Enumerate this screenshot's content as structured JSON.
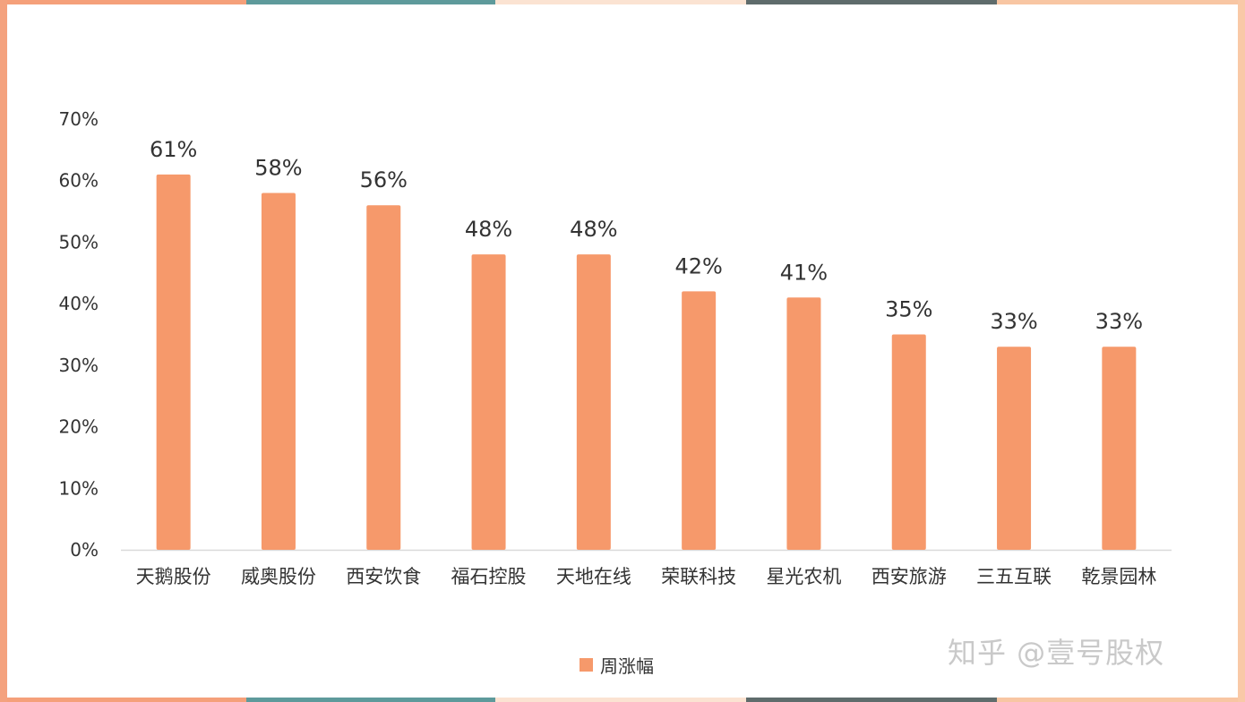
{
  "colors": {
    "bar": "#F6996B",
    "axis_text": "#333333",
    "axis_line": "#d9d9d9",
    "watermark": "#c9c9c9",
    "frame_segments": [
      "#F5A07A",
      "#5E9A9B",
      "#FBE3D2",
      "#5F6C6C",
      "#F8C6A3"
    ],
    "frame_side_left": "#F4A27E",
    "frame_side_right": "#F9C9A7"
  },
  "watermark": "知乎 @壹号股权",
  "chart_data": {
    "type": "bar",
    "categories": [
      "天鹅股份",
      "威奥股份",
      "西安饮食",
      "福石控股",
      "天地在线",
      "荣联科技",
      "星光农机",
      "西安旅游",
      "三五互联",
      "乾景园林"
    ],
    "series": [
      {
        "name": "周涨幅",
        "values": [
          61,
          58,
          56,
          48,
          48,
          42,
          41,
          35,
          33,
          33
        ],
        "labels": [
          "61%",
          "58%",
          "56%",
          "48%",
          "48%",
          "42%",
          "41%",
          "35%",
          "33%",
          "33%"
        ]
      }
    ],
    "yticks": [
      "0%",
      "10%",
      "20%",
      "30%",
      "40%",
      "50%",
      "60%",
      "70%"
    ],
    "ylim": [
      0,
      70
    ],
    "grid": false,
    "legend": "bottom"
  }
}
